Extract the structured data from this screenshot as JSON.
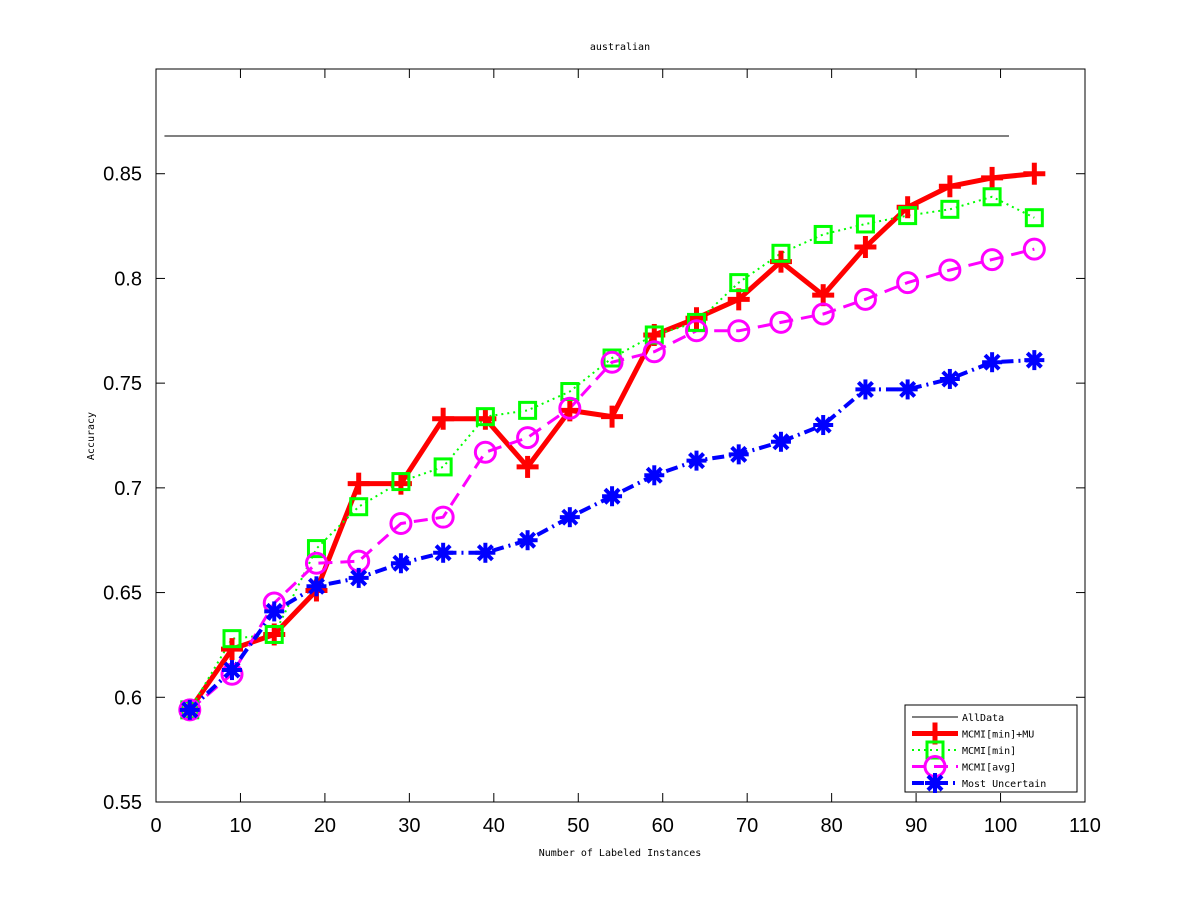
{
  "chart_data": {
    "type": "line",
    "title": "australian",
    "xlabel": "Number of Labeled Instances",
    "ylabel": "Accuracy",
    "xlim": [
      0,
      110
    ],
    "ylim": [
      0.55,
      0.9
    ],
    "xticks": [
      0,
      10,
      20,
      30,
      40,
      50,
      60,
      70,
      80,
      90,
      100,
      110
    ],
    "yticks": [
      0.55,
      0.6,
      0.65,
      0.7,
      0.75,
      0.8,
      0.85
    ],
    "ytick_labels": [
      "0.55",
      "0.6",
      "0.65",
      "0.7",
      "0.75",
      "0.8",
      "0.85"
    ],
    "grid": false,
    "legend_position": "bottom-right",
    "x": [
      4,
      9,
      14,
      19,
      24,
      29,
      34,
      39,
      44,
      49,
      54,
      59,
      64,
      69,
      74,
      79,
      84,
      89,
      94,
      99,
      104
    ],
    "reference_line": {
      "name": "AllData",
      "value": 0.868,
      "x_range": [
        1,
        101
      ],
      "color": "#000000"
    },
    "series": [
      {
        "name": "MCMI[min]+MU",
        "color": "#ff0000",
        "style": "solid",
        "marker": "plus",
        "values": [
          0.594,
          0.623,
          0.63,
          0.651,
          0.702,
          0.702,
          0.733,
          0.733,
          0.71,
          0.737,
          0.734,
          0.773,
          0.781,
          0.79,
          0.808,
          0.792,
          0.815,
          0.834,
          0.844,
          0.848,
          0.85
        ]
      },
      {
        "name": "MCMI[min]",
        "color": "#00ff00",
        "style": "dotted",
        "marker": "square",
        "values": [
          0.594,
          0.628,
          0.63,
          0.671,
          0.691,
          0.703,
          0.71,
          0.734,
          0.737,
          0.746,
          0.762,
          0.773,
          0.779,
          0.798,
          0.812,
          0.821,
          0.826,
          0.83,
          0.833,
          0.839,
          0.829
        ]
      },
      {
        "name": "MCMI[avg]",
        "color": "#ff00ff",
        "style": "dashed",
        "marker": "circle",
        "values": [
          0.594,
          0.611,
          0.645,
          0.664,
          0.665,
          0.683,
          0.686,
          0.717,
          0.724,
          0.738,
          0.76,
          0.765,
          0.775,
          0.775,
          0.779,
          0.783,
          0.79,
          0.798,
          0.804,
          0.809,
          0.814
        ]
      },
      {
        "name": "Most Uncertain",
        "color": "#0000ff",
        "style": "dashdot",
        "marker": "asterisk",
        "values": [
          0.594,
          0.613,
          0.641,
          0.653,
          0.657,
          0.664,
          0.669,
          0.669,
          0.675,
          0.686,
          0.696,
          0.706,
          0.713,
          0.716,
          0.722,
          0.73,
          0.747,
          0.747,
          0.752,
          0.76,
          0.761
        ]
      }
    ]
  }
}
